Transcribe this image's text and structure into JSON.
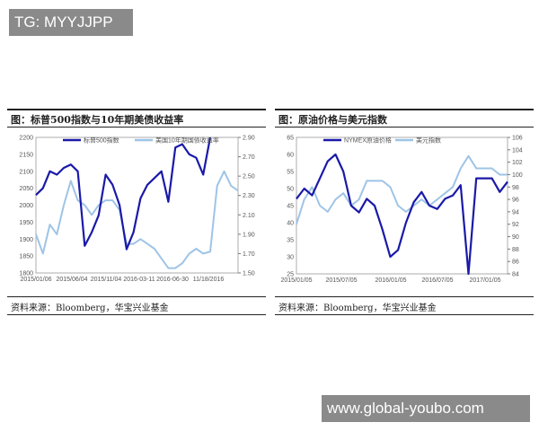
{
  "watermarks": {
    "top_left": "TG: MYYJJPP",
    "bottom_right": "www.global-youbo.com"
  },
  "chart_data": [
    {
      "type": "line",
      "title": "图：标普500指数与10年期美债收益率",
      "source": "资料来源：Bloomberg，华宝兴业基金",
      "x_ticks": [
        "2015/01/06",
        "2015/06/04",
        "2015/11/04",
        "2016-03-11",
        "2016-06-30",
        "11/18/2016"
      ],
      "x_start": "2015-01",
      "x_end": "2017-06",
      "ylim_left": [
        1800,
        2200
      ],
      "yticks_left": [
        "1800",
        "1850",
        "1900",
        "1950",
        "2000",
        "2050",
        "2100",
        "2150",
        "2200"
      ],
      "ylim_right": [
        1.5,
        2.9
      ],
      "yticks_right": [
        "1.50",
        "1.70",
        "1.90",
        "2.10",
        "2.30",
        "2.50",
        "2.70",
        "2.90"
      ],
      "legend_position": "top",
      "grid": false,
      "series": [
        {
          "name": "标普500指数",
          "axis": "left",
          "color": "#1a1aa8",
          "values": [
            2030,
            2050,
            2100,
            2090,
            2110,
            2120,
            2100,
            1880,
            1920,
            1970,
            2090,
            2060,
            2000,
            1870,
            1920,
            2020,
            2060,
            2080,
            2100,
            2010,
            2170,
            2180,
            2150,
            2140,
            2090,
            2200
          ]
        },
        {
          "name": "美国10年期国债收益率",
          "axis": "right",
          "color": "#9ec4e6",
          "values": [
            1.9,
            1.7,
            2.0,
            1.9,
            2.2,
            2.45,
            2.25,
            2.2,
            2.1,
            2.2,
            2.25,
            2.25,
            2.15,
            1.8,
            1.8,
            1.85,
            1.8,
            1.75,
            1.65,
            1.55,
            1.55,
            1.6,
            1.7,
            1.75,
            1.7,
            1.72,
            2.4,
            2.55,
            2.4,
            2.35
          ]
        }
      ]
    },
    {
      "type": "line",
      "title": "图：原油价格与美元指数",
      "source": "资料来源：Bloomberg，华宝兴业基金",
      "x_ticks": [
        "2015/01/05",
        "2015/07/05",
        "2016/01/05",
        "2016/07/05",
        "2017/01/05"
      ],
      "x_start": "2015-01",
      "x_end": "2017-04",
      "ylim_left": [
        25,
        65
      ],
      "yticks_left": [
        "25",
        "30",
        "35",
        "40",
        "45",
        "50",
        "55",
        "60",
        "65"
      ],
      "ylim_right": [
        84,
        106
      ],
      "yticks_right": [
        "84",
        "86",
        "88",
        "90",
        "92",
        "94",
        "96",
        "98",
        "100",
        "102",
        "104",
        "106"
      ],
      "legend_position": "top",
      "grid": false,
      "series": [
        {
          "name": "NYMEX原油价格",
          "axis": "left",
          "color": "#1a1aa8",
          "values": [
            47,
            50,
            48,
            53,
            58,
            60,
            55,
            45,
            43,
            47,
            45,
            38,
            30,
            32,
            40,
            46,
            49,
            45,
            44,
            47,
            48,
            51,
            25,
            53,
            53,
            53,
            49,
            52
          ]
        },
        {
          "name": "美元指数",
          "axis": "right",
          "color": "#9ec4e6",
          "values": [
            92,
            96,
            98,
            95,
            94,
            96,
            97,
            95,
            96,
            99,
            99,
            99,
            98,
            95,
            94,
            95,
            96,
            95,
            96,
            97,
            98,
            101,
            103,
            101,
            101,
            101,
            100,
            100
          ]
        }
      ]
    }
  ]
}
